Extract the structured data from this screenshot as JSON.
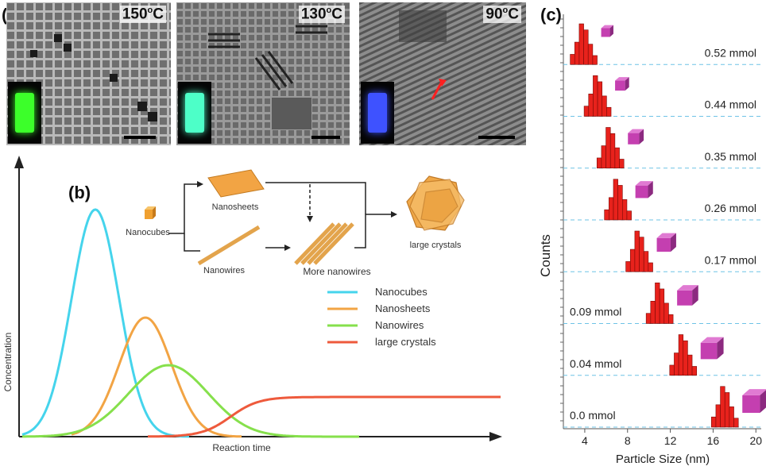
{
  "panel_a": {
    "label": "(a)",
    "images": [
      {
        "temp": "150",
        "unit": "C",
        "vial_color": "#3cff2a"
      },
      {
        "temp": "130",
        "unit": "C",
        "vial_color": "#4dffc8"
      },
      {
        "temp": "90",
        "unit": "C",
        "vial_color": "#3e52ff"
      }
    ],
    "degree": "o"
  },
  "panel_b": {
    "label": "(b)",
    "scheme": {
      "nanocubes": "Nanocubes",
      "nanosheets": "Nanosheets",
      "nanowires": "Nanowires",
      "more_nanowires": "More nanowires",
      "large_crystals": "large crystals"
    },
    "chart_data": {
      "type": "line",
      "xlabel": "Reaction time",
      "ylabel": "Concentration",
      "series": [
        {
          "name": "Nanocubes",
          "color": "#45d4ec"
        },
        {
          "name": "Nanosheets",
          "color": "#f2a444"
        },
        {
          "name": "Nanowires",
          "color": "#86e04c"
        },
        {
          "name": "large crystals",
          "color": "#ee5a3c"
        }
      ]
    }
  },
  "panel_c": {
    "label": "(c)",
    "chart_data": {
      "type": "bar",
      "xlabel": "Particle Size (nm)",
      "ylabel": "Counts",
      "x_ticks": [
        "4",
        "8",
        "12",
        "16",
        "20"
      ],
      "xlim": [
        2,
        20.5
      ],
      "bar_color": "#e8221c",
      "cube_color": "#c43fb0",
      "rows": [
        {
          "label": "0.52 mmol",
          "center": 3.9
        },
        {
          "label": "0.44 mmol",
          "center": 5.2
        },
        {
          "label": "0.35 mmol",
          "center": 6.4
        },
        {
          "label": "0.26 mmol",
          "center": 7.1
        },
        {
          "label": "0.17 mmol",
          "center": 9.1
        },
        {
          "label": "0.09 mmol",
          "center": 11.0
        },
        {
          "label": "0.04 mmol",
          "center": 13.2
        },
        {
          "label": "0.0 mmol",
          "center": 17.1
        }
      ]
    }
  }
}
